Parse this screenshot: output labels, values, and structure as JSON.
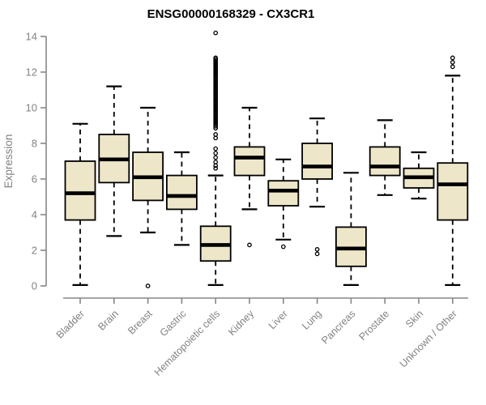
{
  "chart_data": {
    "type": "boxplot",
    "title": "ENSG00000168329 - CX3CR1",
    "ylabel": "Expression",
    "xlabel": "",
    "ylim": [
      0,
      14
    ],
    "yticks": [
      0,
      2,
      4,
      6,
      8,
      10,
      12,
      14
    ],
    "grid": false,
    "legend": false,
    "categories": [
      "Bladder",
      "Brain",
      "Breast",
      "Gastric",
      "Hematopoietic cells",
      "Kidney",
      "Liver",
      "Lung",
      "Pancreas",
      "Prostate",
      "Skin",
      "Unknown / Other"
    ],
    "series": [
      {
        "category": "Bladder",
        "low": 0.05,
        "q1": 3.7,
        "median": 5.2,
        "q3": 7.0,
        "high": 9.1,
        "outliers": []
      },
      {
        "category": "Brain",
        "low": 2.8,
        "q1": 5.8,
        "median": 7.1,
        "q3": 8.5,
        "high": 11.2,
        "outliers": []
      },
      {
        "category": "Breast",
        "low": 3.0,
        "q1": 4.8,
        "median": 6.1,
        "q3": 7.5,
        "high": 10.0,
        "outliers": [
          0.0
        ]
      },
      {
        "category": "Gastric",
        "low": 2.3,
        "q1": 4.3,
        "median": 5.05,
        "q3": 6.2,
        "high": 7.5,
        "outliers": []
      },
      {
        "category": "Hematopoietic cells",
        "low": 0.05,
        "q1": 1.4,
        "median": 2.3,
        "q3": 3.35,
        "high": 6.2,
        "outliers": [
          14.2,
          12.8,
          12.72,
          12.64,
          12.56,
          12.48,
          12.4,
          12.32,
          12.24,
          12.16,
          12.08,
          12.0,
          11.92,
          11.84,
          11.76,
          11.68,
          11.6,
          11.52,
          11.44,
          11.36,
          11.28,
          11.2,
          11.12,
          11.04,
          10.96,
          10.88,
          10.8,
          10.72,
          10.64,
          10.56,
          10.48,
          10.4,
          10.32,
          10.24,
          10.16,
          10.08,
          10.0,
          9.92,
          9.84,
          9.76,
          9.68,
          9.6,
          9.52,
          9.44,
          9.36,
          9.28,
          9.2,
          9.12,
          9.04,
          8.96,
          8.85,
          8.5,
          8.3,
          7.7,
          7.45,
          7.2,
          6.95,
          6.75,
          6.6
        ]
      },
      {
        "category": "Kidney",
        "low": 4.3,
        "q1": 6.2,
        "median": 7.2,
        "q3": 7.8,
        "high": 10.0,
        "outliers": [
          2.3
        ]
      },
      {
        "category": "Liver",
        "low": 2.6,
        "q1": 4.5,
        "median": 5.35,
        "q3": 5.9,
        "high": 7.1,
        "outliers": [
          2.2
        ]
      },
      {
        "category": "Lung",
        "low": 4.45,
        "q1": 6.0,
        "median": 6.7,
        "q3": 8.0,
        "high": 9.4,
        "outliers": [
          2.05,
          1.8
        ]
      },
      {
        "category": "Pancreas",
        "low": 0.05,
        "q1": 1.1,
        "median": 2.1,
        "q3": 3.3,
        "high": 6.35,
        "outliers": []
      },
      {
        "category": "Prostate",
        "low": 5.1,
        "q1": 6.2,
        "median": 6.7,
        "q3": 7.8,
        "high": 9.3,
        "outliers": []
      },
      {
        "category": "Skin",
        "low": 4.9,
        "q1": 5.5,
        "median": 6.1,
        "q3": 6.6,
        "high": 7.5,
        "outliers": []
      },
      {
        "category": "Unknown / Other",
        "low": 0.05,
        "q1": 3.7,
        "median": 5.7,
        "q3": 6.9,
        "high": 11.8,
        "outliers": [
          12.8,
          12.55,
          12.3
        ]
      }
    ],
    "colors": {
      "box_fill": "#EDE6C9",
      "box_border": "#000000",
      "median": "#000000",
      "whisker": "#000000",
      "outlier": "#000000",
      "axis": "#878787",
      "tick_label": "#828282",
      "title": "#000000",
      "background": "#FFFFFF"
    }
  }
}
